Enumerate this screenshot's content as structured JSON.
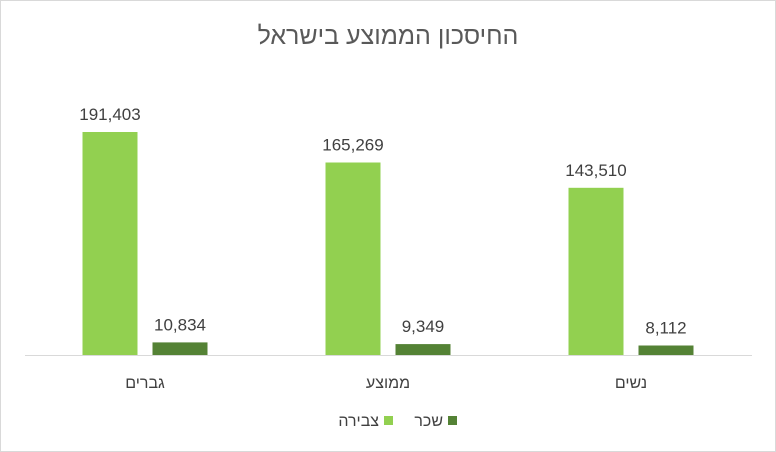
{
  "chart_data": {
    "type": "bar",
    "title": "החיסכון הממוצע בישראל",
    "categories": [
      "גברים",
      "ממוצע",
      "נשים"
    ],
    "series": [
      {
        "name": "צבירה",
        "values": [
          191403,
          165269,
          143510
        ],
        "labels": [
          "191,403",
          "165,269",
          "143,510"
        ],
        "color": "#92d050"
      },
      {
        "name": "שכר",
        "values": [
          10834,
          9349,
          8112
        ],
        "labels": [
          "10,834",
          "9,349",
          "8,112"
        ],
        "color": "#548235"
      }
    ],
    "ylim": [
      0,
      200000
    ],
    "grid": false,
    "legend": "bottom"
  }
}
